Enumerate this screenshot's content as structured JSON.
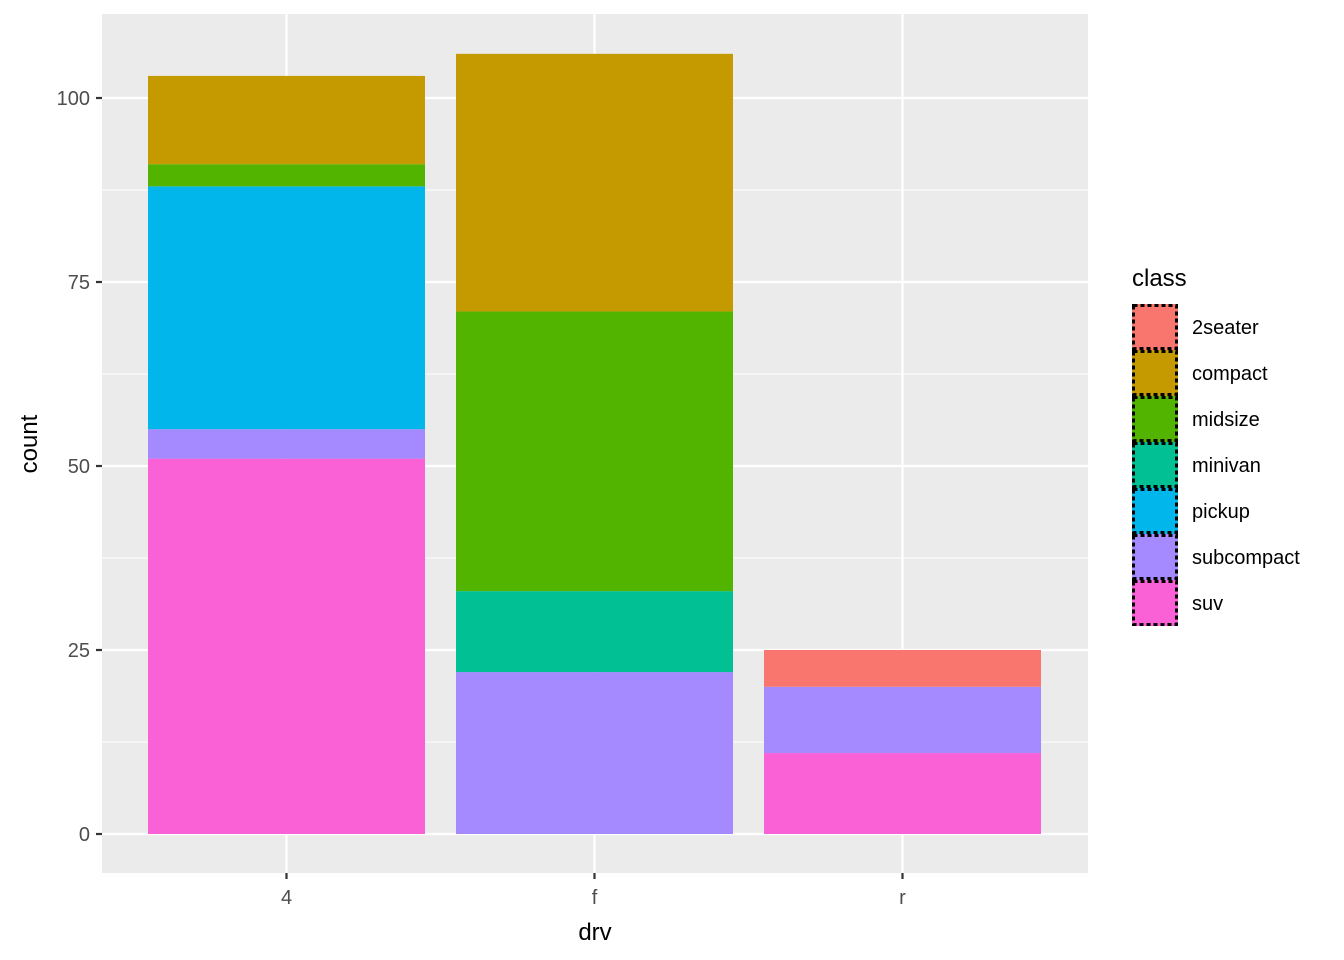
{
  "chart_data": {
    "type": "bar",
    "stacked": true,
    "categories": [
      "4",
      "f",
      "r"
    ],
    "xlabel": "drv",
    "ylabel": "count",
    "ylim": [
      0,
      110
    ],
    "yticks": [
      0,
      25,
      50,
      75,
      100
    ],
    "grid": true,
    "legend": {
      "title": "class",
      "position": "right"
    },
    "series": [
      {
        "name": "2seater",
        "color": "#F8766D",
        "values": [
          0,
          0,
          5
        ]
      },
      {
        "name": "compact",
        "color": "#C49A00",
        "values": [
          12,
          35,
          0
        ]
      },
      {
        "name": "midsize",
        "color": "#53B400",
        "values": [
          3,
          38,
          0
        ]
      },
      {
        "name": "minivan",
        "color": "#00C094",
        "values": [
          0,
          11,
          0
        ]
      },
      {
        "name": "pickup",
        "color": "#00B6EB",
        "values": [
          33,
          0,
          0
        ]
      },
      {
        "name": "subcompact",
        "color": "#A58AFF",
        "values": [
          4,
          22,
          9
        ]
      },
      {
        "name": "suv",
        "color": "#FB61D7",
        "values": [
          51,
          0,
          11
        ]
      }
    ]
  }
}
